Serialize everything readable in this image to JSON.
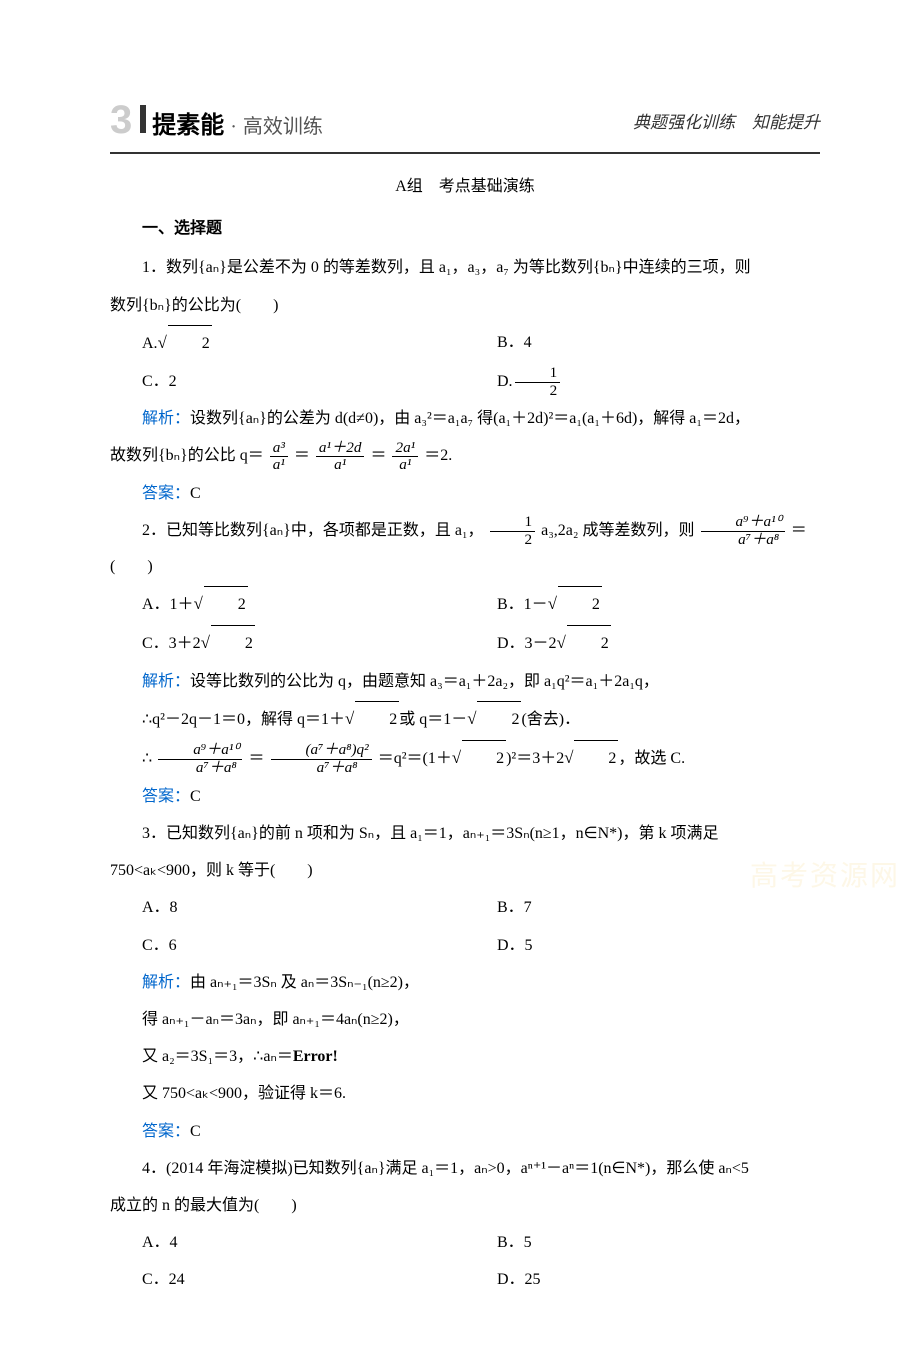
{
  "header": {
    "number": "3",
    "main": "提素能",
    "dot": "·",
    "sub": "高效训练",
    "right": "典题强化训练　知能提升"
  },
  "groupA": "A组　考点基础演练",
  "section1": "一、选择题",
  "q1": {
    "stem1": "1．数列{aₙ}是公差不为 0 的等差数列，且 a₁，a₃，a₇ 为等比数列{bₙ}中连续的三项，则",
    "stem2": "数列{bₙ}的公比为(　　)",
    "A": "A.",
    "A_val_under": "2",
    "B": "B．4",
    "C": "C．2",
    "D_lbl": "D.",
    "D_num": "1",
    "D_den": "2",
    "sol_label": "解析：",
    "sol_line1": "设数列{aₙ}的公差为 d(d≠0)，由 a₃²＝a₁a₇ 得(a₁＋2d)²＝a₁(a₁＋6d)，解得 a₁＝2d，",
    "sol_line2_pre": "故数列{bₙ}的公比 q＝",
    "fr1_num": "a³",
    "fr1_den": "a¹",
    "eq1": "＝",
    "fr2_num": "a¹＋2d",
    "fr2_den": "a¹",
    "eq2": "＝",
    "fr3_num": "2a¹",
    "fr3_den": "a¹",
    "sol_line2_post": "＝2.",
    "ans_label": "答案：",
    "ans": "C"
  },
  "q2": {
    "stem_pre": "2．已知等比数列{aₙ}中，各项都是正数，且 a₁，",
    "half_num": "1",
    "half_den": "2",
    "stem_mid": "a₃,2a₂ 成等差数列，则",
    "fr_num": "a⁹＋a¹⁰",
    "fr_den": "a⁷＋a⁸",
    "stem_post": "＝(　　)",
    "A_lbl": "A．1＋",
    "A_under": "2",
    "B_lbl": "B．1－",
    "B_under": "2",
    "C_lbl": "C．3＋2",
    "C_under": "2",
    "D_lbl": "D．3－2",
    "D_under": "2",
    "sol_label": "解析：",
    "sol1": "设等比数列的公比为 q，由题意知 a₃＝a₁＋2a₂，即 a₁q²＝a₁＋2a₁q，",
    "sol2_pre": "∴q²－2q－1＝0，解得 q＝1＋",
    "sol2_mid": "或 q＝1－",
    "sol2_post": "(舍去)．",
    "sol3_pre": "∴",
    "sol3_fr1_num": "a⁹＋a¹⁰",
    "sol3_fr1_den": "a⁷＋a⁸",
    "sol3_eq1": "＝",
    "sol3_fr2_num": "(a⁷＋a⁸)q²",
    "sol3_fr2_den": "a⁷＋a⁸",
    "sol3_eq2": "＝q²＝(1＋",
    "sol3_eq3": ")²＝3＋2",
    "sol3_post": "，故选 C.",
    "ans_label": "答案：",
    "ans": "C"
  },
  "q3": {
    "stem1": "3．已知数列{aₙ}的前 n 项和为 Sₙ，且 a₁＝1，aₙ₊₁＝3Sₙ(n≥1，n∈N*)，第 k 项满足",
    "stem2": "750<aₖ<900，则 k 等于(　　)",
    "A": "A．8",
    "B": "B．7",
    "C": "C．6",
    "D": "D．5",
    "sol_label": "解析：",
    "sol1": "由 aₙ₊₁＝3Sₙ 及 aₙ＝3Sₙ₋₁(n≥2)，",
    "sol2": "得 aₙ₊₁－aₙ＝3aₙ，即 aₙ₊₁＝4aₙ(n≥2)，",
    "sol3_pre": "又 a₂＝3S₁＝3，∴aₙ＝",
    "sol3_err": "Error!",
    "sol4": "又 750<aₖ<900，验证得 k＝6.",
    "ans_label": "答案：",
    "ans": "C"
  },
  "q4": {
    "stem1": "4．(2014 年海淀模拟)已知数列{aₙ}满足 a₁＝1，aₙ>0，aⁿ⁺¹－aⁿ＝1(n∈N*)，那么使 aₙ<5",
    "stem2": "成立的 n 的最大值为(　　)",
    "A": "A．4",
    "B": "B．5",
    "C": "C．24",
    "D": "D．25"
  },
  "watermark": "高考资源网",
  "colors": {
    "blue": "#0066cc",
    "grey_num": "#cccccc",
    "text": "#000000",
    "bg": "#ffffff"
  }
}
